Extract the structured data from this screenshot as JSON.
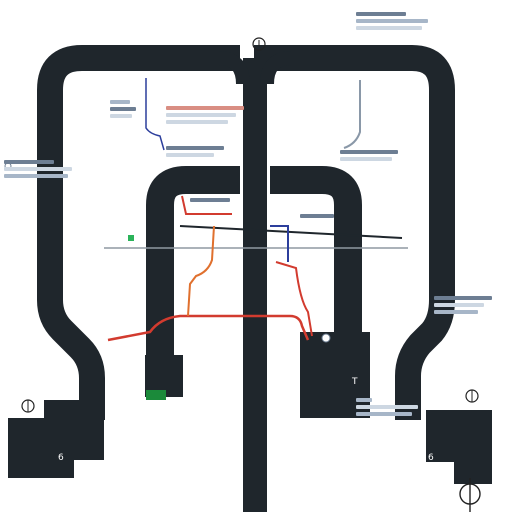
{
  "diagram": {
    "background": "#ffffff",
    "colors": {
      "frame": "#1f262c",
      "red_wire": "#d23b2f",
      "orange_wire": "#e0702e",
      "blue_wire": "#2c3e9c",
      "gray_wire": "#8a98a8",
      "indicator_green": "#1b8a3a",
      "indicator_lightgreen": "#2bb35a",
      "hline": "#8f98a2"
    },
    "labels": {
      "left_block_note": "",
      "left_block_note_2": ""
    },
    "icons": {
      "top": "connector-circle-icon",
      "bottom_right": "terminal-circle-icon",
      "left_terminal": "loop-connector-icon",
      "right_terminal": "loop-connector-icon"
    }
  }
}
